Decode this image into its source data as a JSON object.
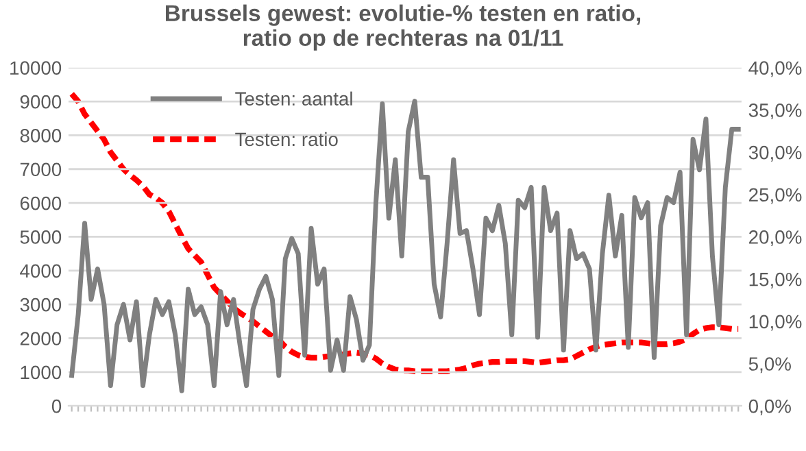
{
  "chart_data": {
    "type": "line",
    "title": "Brussels gewest: evolutie-% testen en ratio,\nratio op de rechteras na 01/11",
    "categories": [
      null,
      null,
      null,
      null,
      null,
      null,
      null,
      null,
      null,
      null,
      null,
      null,
      null,
      null,
      null,
      null,
      null,
      null,
      null,
      null,
      null,
      null,
      null,
      null,
      null,
      null,
      null,
      null,
      null,
      null,
      null,
      null,
      null,
      null,
      null,
      null,
      null,
      null,
      null,
      null,
      null,
      null,
      null,
      null,
      null,
      null,
      null,
      null,
      null,
      null,
      null,
      null,
      null,
      null,
      null,
      null,
      null,
      null,
      null,
      null,
      null,
      null,
      null,
      null,
      null,
      null,
      null,
      null,
      null,
      null,
      null,
      null,
      null,
      null,
      null,
      null,
      null,
      null,
      null,
      null,
      null,
      null,
      null,
      null,
      null,
      null,
      null,
      null,
      null,
      null,
      null,
      null,
      null,
      null,
      null,
      null,
      null,
      null,
      null,
      null,
      null,
      null,
      null,
      null
    ],
    "series": [
      {
        "name": "Testen: aantal",
        "color": "#808080",
        "line_style": "solid",
        "values": [
          900,
          2700,
          5400,
          3150,
          4050,
          3000,
          600,
          2400,
          3000,
          1950,
          3080,
          600,
          2100,
          3150,
          2700,
          3080,
          2100,
          450,
          3450,
          2700,
          2930,
          2400,
          600,
          3380,
          2400,
          3150,
          1800,
          600,
          2850,
          3450,
          3830,
          3150,
          900,
          4350,
          4950,
          4500,
          1500,
          5250,
          3600,
          4050,
          1050,
          1950,
          1050,
          3230,
          2550,
          1350,
          1800,
          6000,
          8930,
          5550,
          7280,
          4430,
          8110,
          9010,
          6760,
          6760,
          3600,
          2630,
          4800,
          7280,
          5100,
          5180,
          4050,
          2700,
          5550,
          5180,
          5930,
          4800,
          2100,
          6080,
          5860,
          6460,
          2030,
          6460,
          5180,
          5700,
          1650,
          5180,
          4350,
          4500,
          4050,
          1650,
          4500,
          6230,
          4430,
          5630,
          1730,
          6160,
          5560,
          6010,
          1430,
          5330,
          6160,
          6010,
          6910,
          2100,
          7880,
          6980,
          8480,
          4430,
          2400,
          6460,
          8180,
          8180
        ]
      },
      {
        "name": "Testen: ratio",
        "color": "#ff0000",
        "line_style": "dashed",
        "axis": "y2",
        "values": [
          36.9,
          36.0,
          34.5,
          33.5,
          32.5,
          31.5,
          30.0,
          29.0,
          28.0,
          27.3,
          26.7,
          26.0,
          25.0,
          24.6,
          24.0,
          23.0,
          21.5,
          20.0,
          18.6,
          17.8,
          17.0,
          15.5,
          14.0,
          13.2,
          12.4,
          11.6,
          11.0,
          10.5,
          10.0,
          9.4,
          8.8,
          8.2,
          7.8,
          7.0,
          6.4,
          6.0,
          5.8,
          5.7,
          5.7,
          5.8,
          5.9,
          6.0,
          6.1,
          6.2,
          6.3,
          6.2,
          6.0,
          5.6,
          5.0,
          4.6,
          4.3,
          4.2,
          4.2,
          4.1,
          4.1,
          4.1,
          4.1,
          4.1,
          4.1,
          4.2,
          4.3,
          4.5,
          4.8,
          5.0,
          5.1,
          5.2,
          5.2,
          5.3,
          5.3,
          5.3,
          5.3,
          5.2,
          5.1,
          5.2,
          5.3,
          5.4,
          5.4,
          5.5,
          5.9,
          6.3,
          6.7,
          7.0,
          7.2,
          7.3,
          7.4,
          7.5,
          7.5,
          7.5,
          7.5,
          7.4,
          7.3,
          7.3,
          7.3,
          7.4,
          7.6,
          7.9,
          8.5,
          9.0,
          9.2,
          9.3,
          9.3,
          9.2,
          9.1,
          9.1
        ]
      }
    ],
    "ylim": [
      0,
      10000
    ],
    "yticks": [
      0,
      1000,
      2000,
      3000,
      4000,
      5000,
      6000,
      7000,
      8000,
      9000,
      10000
    ],
    "y2lim": [
      0,
      40
    ],
    "y2ticks": [
      {
        "value": 0,
        "label": "0,0%"
      },
      {
        "value": 5,
        "label": "5,0%"
      },
      {
        "value": 10,
        "label": "10,0%"
      },
      {
        "value": 15,
        "label": "15,0%"
      },
      {
        "value": 20,
        "label": "20,0%"
      },
      {
        "value": 25,
        "label": "25,0%"
      },
      {
        "value": 30,
        "label": "30,0%"
      },
      {
        "value": 35,
        "label": "35,0%"
      },
      {
        "value": 40,
        "label": "40,0%"
      }
    ],
    "grid": "y",
    "legend": "top left",
    "marker": "none"
  }
}
